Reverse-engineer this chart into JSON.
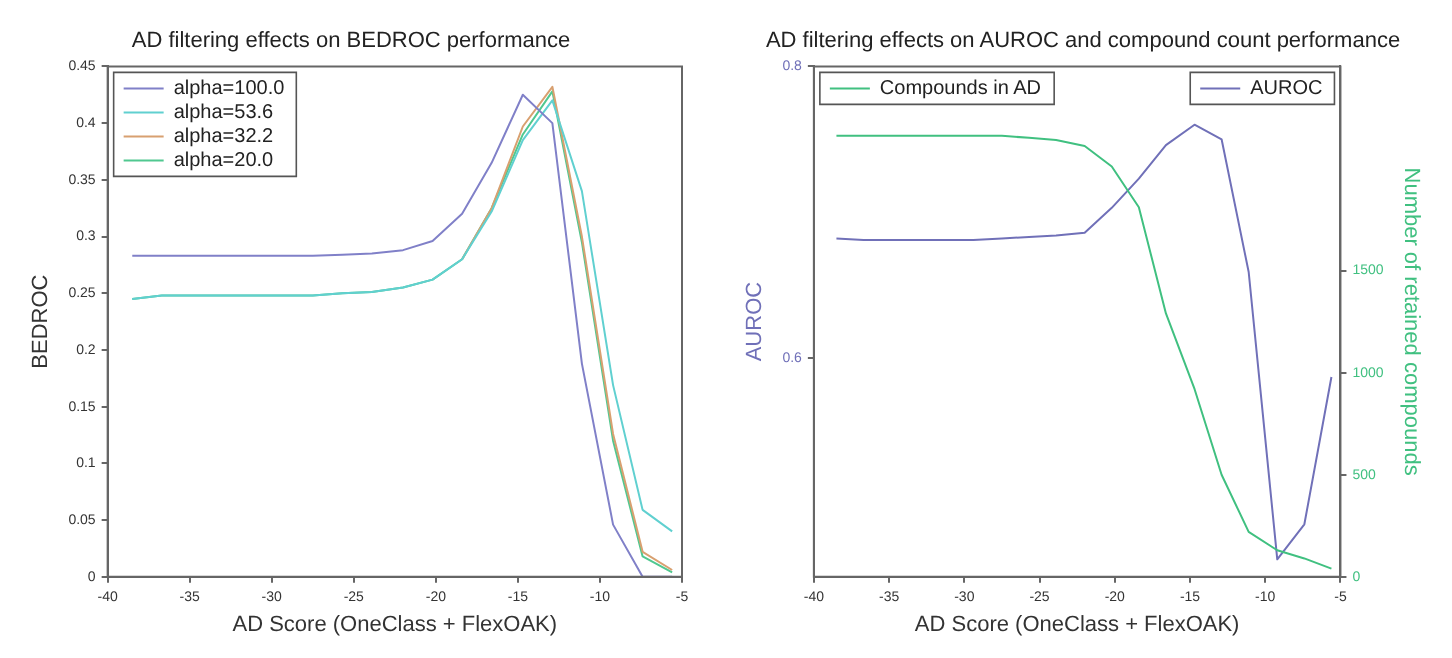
{
  "chart_data": [
    {
      "type": "line",
      "title": "AD filtering effects on BEDROC performance",
      "xlabel": "AD Score (OneClass + FlexOAK)",
      "ylabel": "BEDROC",
      "x": [
        -38.5,
        -36.7,
        -34.9,
        -33.0,
        -31.2,
        -29.4,
        -27.5,
        -25.7,
        -23.9,
        -22.0,
        -20.2,
        -18.4,
        -16.6,
        -14.7,
        -12.9,
        -11.1,
        -9.2,
        -7.4,
        -5.6
      ],
      "xlim": [
        -40,
        -5
      ],
      "xticks": [
        -40,
        -35,
        -30,
        -25,
        -20,
        -15,
        -10,
        -5
      ],
      "ylim": [
        0,
        0.45
      ],
      "yticks": [
        0,
        0.05,
        0.1,
        0.15,
        0.2,
        0.25,
        0.3,
        0.35,
        0.4,
        0.45
      ],
      "legend": "top left",
      "series": [
        {
          "name": "alpha=100.0",
          "color": "#8080c8",
          "values": [
            0.283,
            0.283,
            0.283,
            0.283,
            0.283,
            0.283,
            0.283,
            0.284,
            0.285,
            0.288,
            0.296,
            0.32,
            0.365,
            0.425,
            0.4,
            0.188,
            0.046,
            0,
            0
          ]
        },
        {
          "name": "alpha=53.6",
          "color": "#60d0d0",
          "values": [
            0.245,
            0.248,
            0.248,
            0.248,
            0.248,
            0.248,
            0.248,
            0.25,
            0.251,
            0.255,
            0.262,
            0.28,
            0.322,
            0.385,
            0.42,
            0.34,
            0.169,
            0.059,
            0.04
          ]
        },
        {
          "name": "alpha=32.2",
          "color": "#d8a070",
          "values": [
            null,
            null,
            null,
            null,
            null,
            null,
            null,
            null,
            null,
            null,
            null,
            0.28,
            0.325,
            0.397,
            0.432,
            0.3,
            0.126,
            0.022,
            0.006
          ]
        },
        {
          "name": "alpha=20.0",
          "color": "#50c890",
          "values": [
            0.245,
            0.248,
            0.248,
            0.248,
            0.248,
            0.248,
            0.248,
            0.25,
            0.251,
            0.255,
            0.262,
            0.28,
            0.325,
            0.39,
            0.428,
            0.295,
            0.12,
            0.018,
            0.004
          ]
        }
      ]
    },
    {
      "type": "line",
      "title": "AD filtering effects on AUROC and compound count performance",
      "xlabel": "AD Score (OneClass + FlexOAK)",
      "ylabel": "AUROC",
      "y2label": "Number of retained compounds",
      "x": [
        -38.5,
        -36.7,
        -34.9,
        -33.0,
        -31.2,
        -29.4,
        -27.5,
        -25.7,
        -23.9,
        -22.0,
        -20.2,
        -18.4,
        -16.6,
        -14.7,
        -12.9,
        -11.1,
        -9.2,
        -7.4,
        -5.6
      ],
      "xlim": [
        -40,
        -5
      ],
      "xticks": [
        -40,
        -35,
        -30,
        -25,
        -20,
        -15,
        -10,
        -5
      ],
      "ylim": [
        0.45,
        0.8
      ],
      "yticks": [
        0.6,
        0.8
      ],
      "y2lim": [
        0,
        2500
      ],
      "y2ticks": [
        0,
        500,
        1000,
        1500
      ],
      "legend": "top",
      "series": [
        {
          "name": "Compounds in AD",
          "color": "#40c080",
          "axis": "y2",
          "values": [
            2160,
            2160,
            2160,
            2160,
            2160,
            2160,
            2160,
            2150,
            2140,
            2110,
            2010,
            1810,
            1290,
            920,
            500,
            220,
            130,
            90,
            40
          ]
        },
        {
          "name": "AUROC",
          "color": "#7070b8",
          "values": [
            0.682,
            0.681,
            0.681,
            0.681,
            0.681,
            0.681,
            0.682,
            0.683,
            0.684,
            0.686,
            0.703,
            0.723,
            0.746,
            0.76,
            0.75,
            0.659,
            0.462,
            0.486,
            0.587
          ]
        }
      ]
    }
  ]
}
